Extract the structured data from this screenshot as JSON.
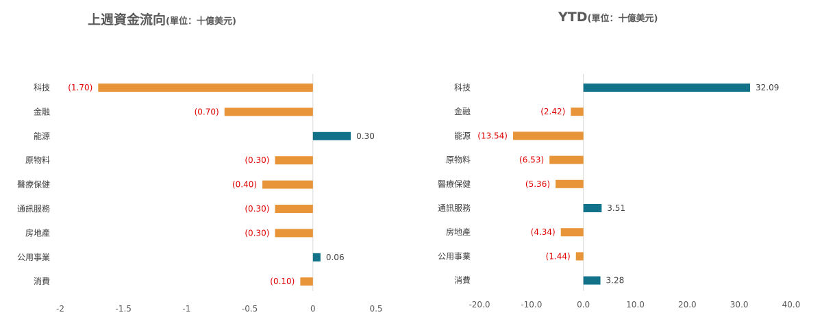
{
  "colors": {
    "positive": "#11728a",
    "negative": "#e8953a",
    "neg_label": "#e00000",
    "pos_label": "#404040",
    "axis": "#d9d9d9"
  },
  "chart_data": [
    {
      "type": "bar",
      "orientation": "horizontal",
      "title": "上週資金流向",
      "subtitle": "(單位：十億美元)",
      "categories": [
        "科技",
        "金融",
        "能源",
        "原物料",
        "醫療保健",
        "通訊服務",
        "房地產",
        "公用事業",
        "消費"
      ],
      "values": [
        -1.7,
        -0.7,
        0.3,
        -0.3,
        -0.4,
        -0.3,
        -0.3,
        0.06,
        -0.1
      ],
      "value_labels": [
        "(1.70)",
        "(0.70)",
        "0.30",
        "(0.30)",
        "(0.40)",
        "(0.30)",
        "(0.30)",
        "0.06",
        "(0.10)"
      ],
      "xlim": [
        -2,
        0.5
      ],
      "x_ticks": [
        -2,
        -1.5,
        -1,
        -0.5,
        0,
        0.5
      ],
      "x_tick_labels": [
        "-2",
        "-1.5",
        "-1",
        "-0.5",
        "0",
        "0.5"
      ],
      "grid": false,
      "legend": "none"
    },
    {
      "type": "bar",
      "orientation": "horizontal",
      "title": "YTD",
      "subtitle": "(單位：十億美元)",
      "categories": [
        "科技",
        "金融",
        "能源",
        "原物料",
        "醫療保健",
        "通訊服務",
        "房地產",
        "公用事業",
        "消費"
      ],
      "values": [
        32.09,
        -2.42,
        -13.54,
        -6.53,
        -5.36,
        3.51,
        -4.34,
        -1.44,
        3.28
      ],
      "value_labels": [
        "32.09",
        "(2.42)",
        "(13.54)",
        "(6.53)",
        "(5.36)",
        "3.51",
        "(4.34)",
        "(1.44)",
        "3.28"
      ],
      "xlim": [
        -20,
        40
      ],
      "x_ticks": [
        -20,
        -10,
        0,
        10,
        20,
        30,
        40
      ],
      "x_tick_labels": [
        "-20.0",
        "-10.0",
        "0.0",
        "10.0",
        "20.0",
        "30.0",
        "40.0"
      ],
      "grid": false,
      "legend": "none"
    }
  ]
}
